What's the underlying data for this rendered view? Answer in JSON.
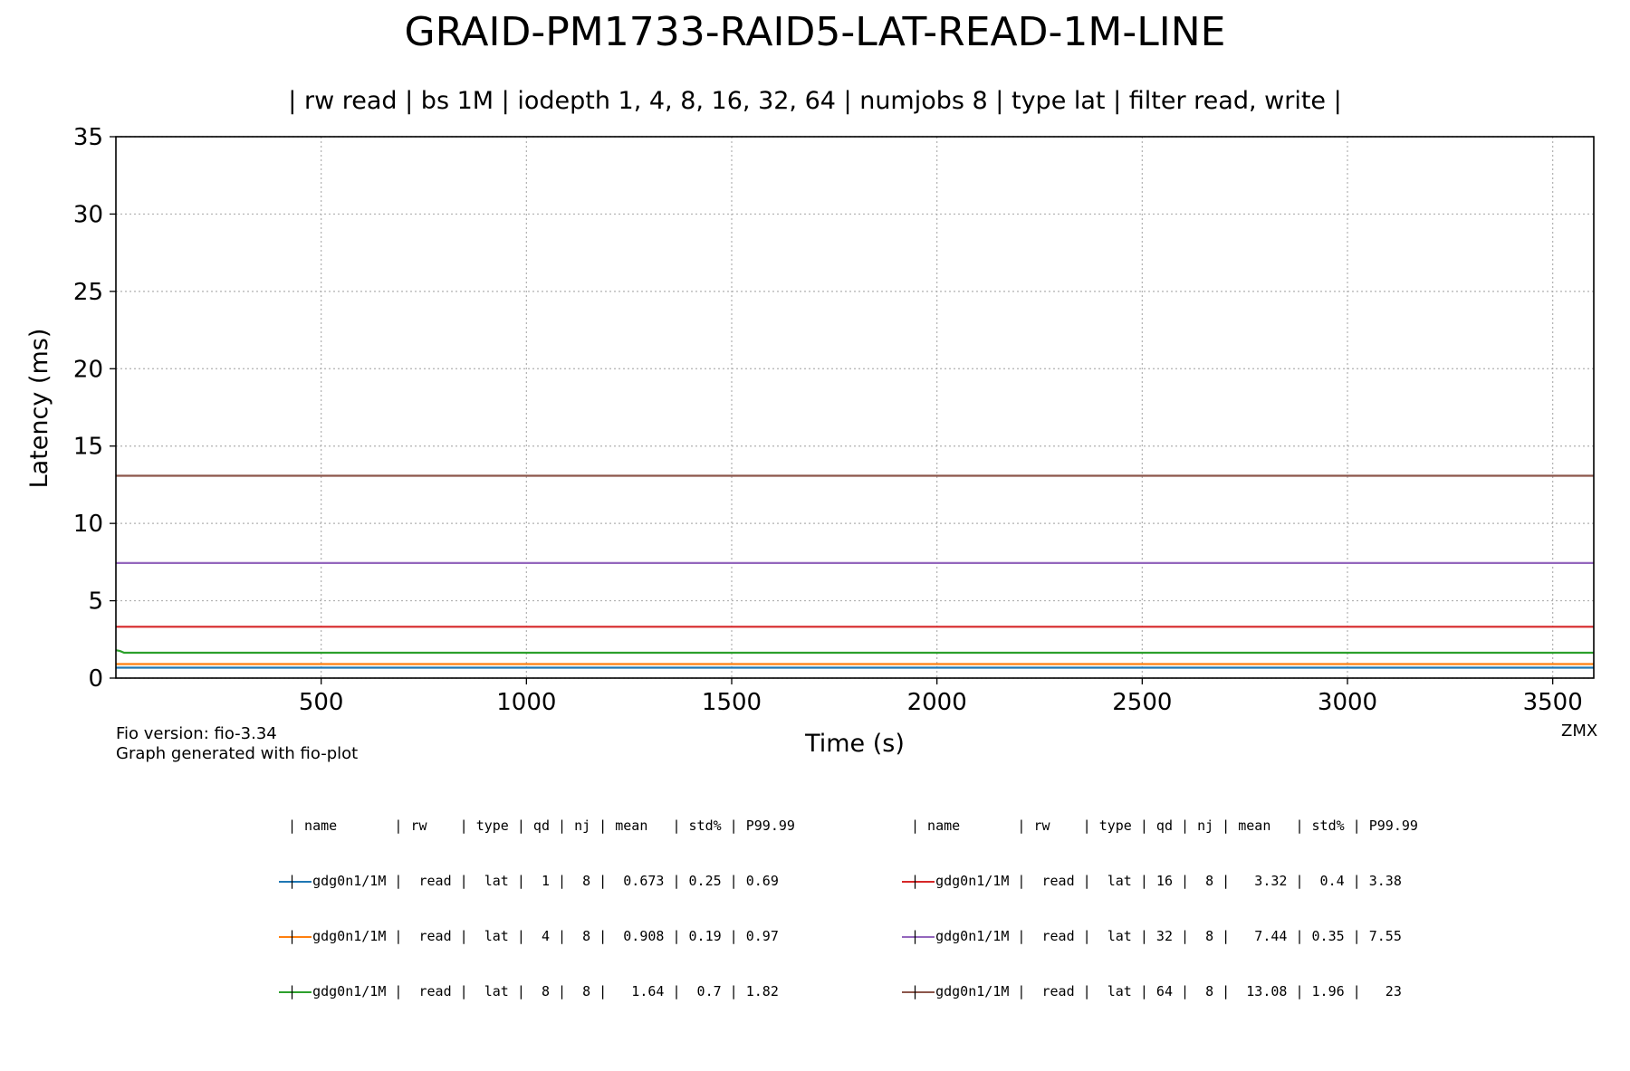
{
  "title": "GRAID-PM1733-RAID5-LAT-READ-1M-LINE",
  "subtitle": "| rw read | bs 1M | iodepth 1, 4, 8, 16, 32, 64 | numjobs 8 | type lat | filter read, write |",
  "footer": {
    "fio_version": "Fio version: fio-3.34",
    "generated": "Graph generated with fio-plot",
    "tag": "ZMX"
  },
  "chart_data": {
    "type": "line",
    "xlabel": "Time (s)",
    "ylabel": "Latency (ms)",
    "xlim": [
      0,
      3600
    ],
    "ylim": [
      0,
      35
    ],
    "xticks": [
      500,
      1000,
      1500,
      2000,
      2500,
      3000,
      3500
    ],
    "yticks": [
      0,
      5,
      10,
      15,
      20,
      25,
      30,
      35
    ],
    "grid": true,
    "series": [
      {
        "qd": 1,
        "color": "#1f77b4",
        "x": [
          0,
          3600
        ],
        "y": [
          0.673,
          0.673
        ]
      },
      {
        "qd": 4,
        "color": "#ff7f0e",
        "x": [
          0,
          3600
        ],
        "y": [
          0.908,
          0.908
        ]
      },
      {
        "qd": 8,
        "color": "#2ca02c",
        "x": [
          0,
          10,
          20,
          3600
        ],
        "y": [
          1.8,
          1.75,
          1.64,
          1.64
        ]
      },
      {
        "qd": 16,
        "color": "#d62728",
        "x": [
          0,
          3600
        ],
        "y": [
          3.32,
          3.32
        ]
      },
      {
        "qd": 32,
        "color": "#9467bd",
        "x": [
          0,
          3600
        ],
        "y": [
          7.44,
          7.44
        ]
      },
      {
        "qd": 64,
        "color": "#8c564b",
        "x": [
          0,
          3600
        ],
        "y": [
          13.08,
          13.08
        ]
      }
    ]
  },
  "legend": {
    "header": "| name       | rw    | type | qd | nj | mean   | std% | P99.99",
    "rows": [
      "|  gdg0n1/1M |  read |  lat |  1 |  8 |  0.673 | 0.25 | 0.69",
      "|  gdg0n1/1M |  read |  lat |  4 |  8 |  0.908 | 0.19 | 0.97",
      "|  gdg0n1/1M |  read |  lat |  8 |  8 |   1.64 |  0.7 | 1.82",
      "|  gdg0n1/1M |  read |  lat | 16 |  8 |   3.32 |  0.4 | 3.38",
      "|  gdg0n1/1M |  read |  lat | 32 |  8 |   7.44 | 0.35 | 7.55",
      "|  gdg0n1/1M |  read |  lat | 64 |  8 |  13.08 | 1.96 |   23"
    ]
  }
}
